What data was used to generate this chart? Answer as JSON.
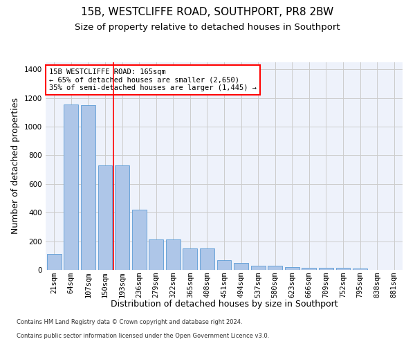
{
  "title": "15B, WESTCLIFFE ROAD, SOUTHPORT, PR8 2BW",
  "subtitle": "Size of property relative to detached houses in Southport",
  "xlabel": "Distribution of detached houses by size in Southport",
  "ylabel": "Number of detached properties",
  "footer1": "Contains HM Land Registry data © Crown copyright and database right 2024.",
  "footer2": "Contains public sector information licensed under the Open Government Licence v3.0.",
  "categories": [
    "21sqm",
    "64sqm",
    "107sqm",
    "150sqm",
    "193sqm",
    "236sqm",
    "279sqm",
    "322sqm",
    "365sqm",
    "408sqm",
    "451sqm",
    "494sqm",
    "537sqm",
    "580sqm",
    "623sqm",
    "666sqm",
    "709sqm",
    "752sqm",
    "795sqm",
    "838sqm",
    "881sqm"
  ],
  "values": [
    110,
    1155,
    1150,
    730,
    730,
    420,
    215,
    215,
    150,
    150,
    70,
    50,
    30,
    30,
    20,
    15,
    15,
    15,
    10,
    0,
    0
  ],
  "bar_color": "#aec6e8",
  "bar_edge_color": "#5b9bd5",
  "annotation_text": "15B WESTCLIFFE ROAD: 165sqm\n← 65% of detached houses are smaller (2,650)\n35% of semi-detached houses are larger (1,445) →",
  "vline_x_index": 3.5,
  "ylim": [
    0,
    1450
  ],
  "yticks": [
    0,
    200,
    400,
    600,
    800,
    1000,
    1200,
    1400
  ],
  "grid_color": "#cccccc",
  "bg_color": "#eef2fb",
  "title_fontsize": 11,
  "subtitle_fontsize": 9.5,
  "tick_fontsize": 7.5,
  "ylabel_fontsize": 9,
  "xlabel_fontsize": 9,
  "ann_fontsize": 7.5,
  "footer_fontsize": 6
}
